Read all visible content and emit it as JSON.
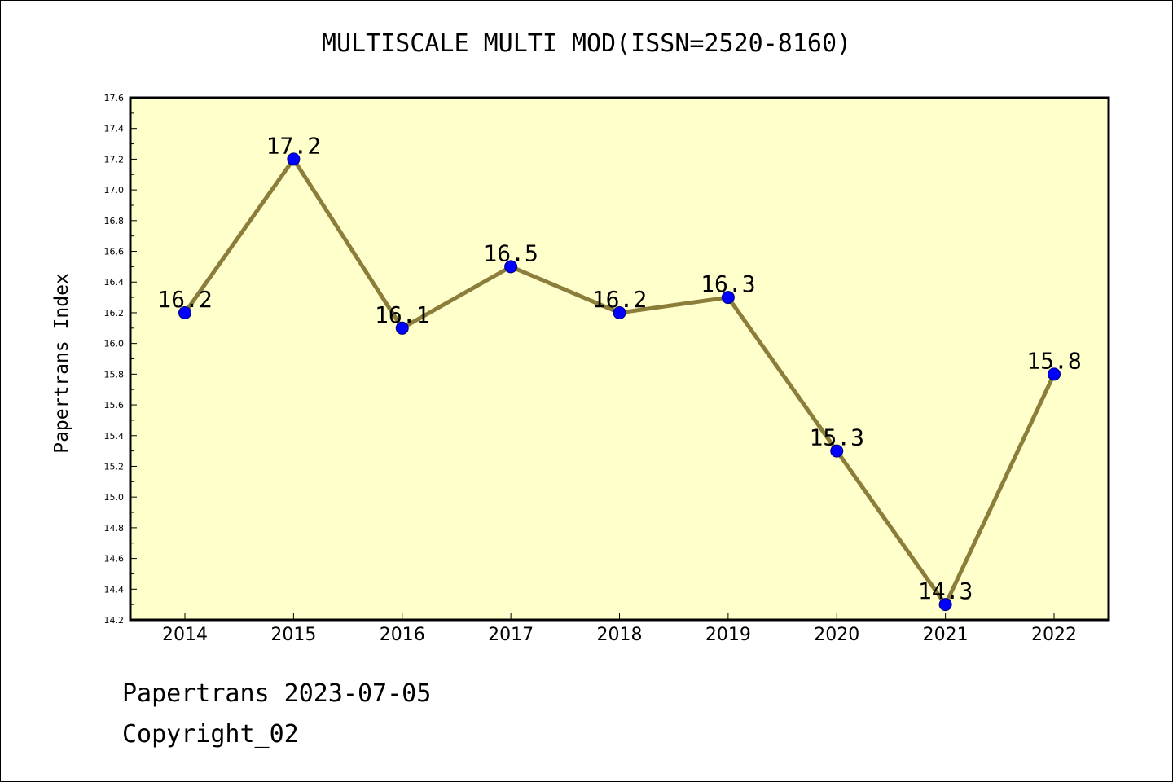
{
  "footer": {
    "source_date": "Papertrans 2023-07-05",
    "copyright": "Copyright_02"
  },
  "chart_data": {
    "type": "line",
    "title": "MULTISCALE MULTI MOD(ISSN=2520-8160)",
    "xlabel": "",
    "ylabel": "Papertrans Index",
    "categories": [
      "2014",
      "2015",
      "2016",
      "2017",
      "2018",
      "2019",
      "2020",
      "2021",
      "2022"
    ],
    "series": [
      {
        "values": [
          16.2,
          17.2,
          16.1,
          16.5,
          16.2,
          16.3,
          15.3,
          14.3,
          15.8
        ],
        "data_labels": [
          "16.2",
          "17.2",
          "16.1",
          "16.5",
          "16.2",
          "16.3",
          "15.3",
          "14.3",
          "15.8"
        ]
      }
    ],
    "ylim": [
      14.2,
      17.6
    ],
    "y_ticks": [
      "14.2",
      "14.4",
      "14.6",
      "14.8",
      "15.0",
      "15.2",
      "15.4",
      "15.6",
      "15.8",
      "16.0",
      "16.2",
      "16.4",
      "16.6",
      "16.8",
      "17.0",
      "17.2",
      "17.4",
      "17.6"
    ],
    "grid": false,
    "legend": "none",
    "colors": {
      "plot_background": "#ffffcc",
      "line": "#8b7d3a",
      "marker": "#0000ff",
      "marker_edge": "#00007a"
    }
  }
}
